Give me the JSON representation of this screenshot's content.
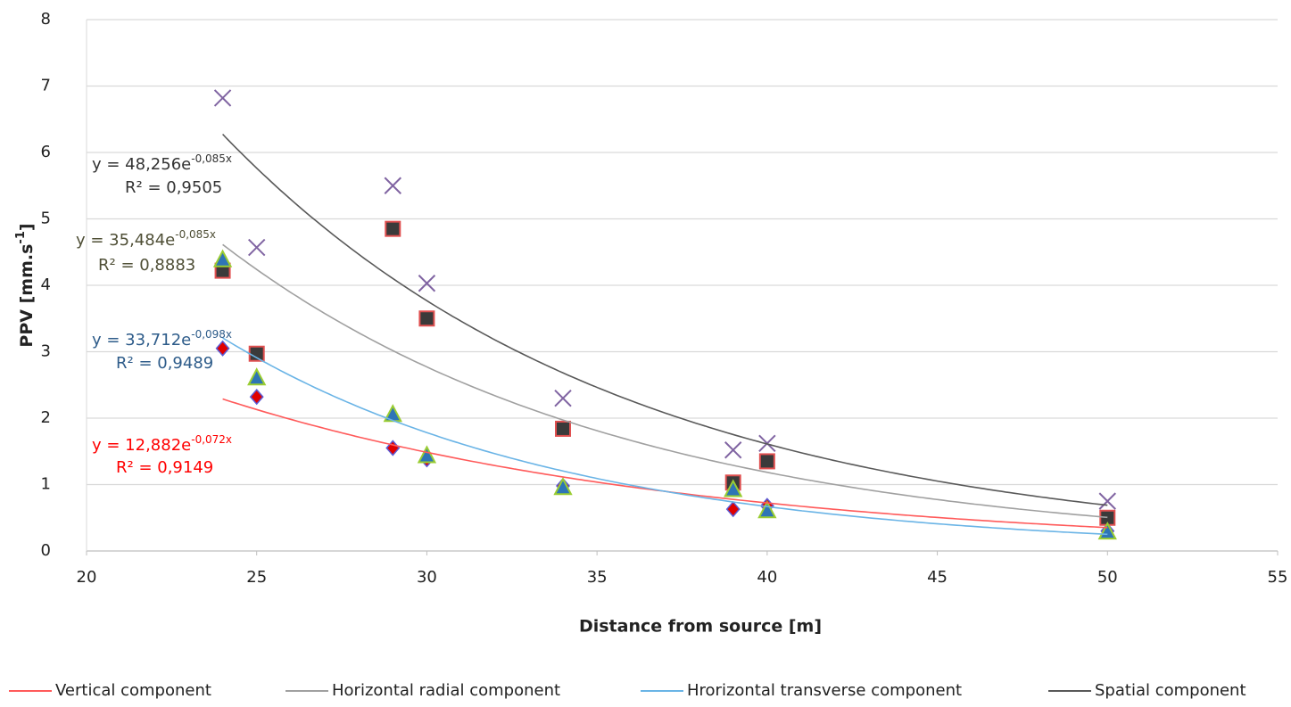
{
  "chart_data": {
    "type": "scatter",
    "xlabel": "Distance from source [m]",
    "ylabel": "PPV  [mm.s",
    "ylabel_sup": "-1",
    "ylabel_end": "]",
    "x": [
      24,
      25,
      29,
      30,
      34,
      39,
      40,
      50
    ],
    "xlim": [
      20,
      55
    ],
    "xticks": [
      20,
      25,
      30,
      35,
      40,
      45,
      50,
      55
    ],
    "ylim": [
      0,
      8
    ],
    "yticks": [
      0,
      1,
      2,
      3,
      4,
      5,
      6,
      7,
      8
    ],
    "grid": true,
    "legend": "bottom",
    "series": [
      {
        "name": "Vertical component",
        "color": "#ff5a5a",
        "marker": "diamond",
        "marker_fill": "#e00000",
        "marker_stroke": "#5b5bd5",
        "values": [
          3.05,
          2.32,
          1.55,
          1.38,
          0.98,
          0.63,
          0.68,
          0.3
        ],
        "trendline": {
          "a": 12.882,
          "b": -0.072,
          "equation": "y = 12,882e",
          "exponent": "-0,072x",
          "r2": "R² = 0,9149",
          "label_color": "#ff0000"
        }
      },
      {
        "name": "Horizontal radial component",
        "color": "#a0a0a0",
        "marker": "square",
        "marker_fill": "#3a3a3a",
        "marker_stroke": "#e05050",
        "values": [
          4.22,
          2.97,
          4.85,
          3.5,
          1.84,
          1.03,
          1.35,
          0.5
        ],
        "trendline": {
          "a": 35.484,
          "b": -0.085,
          "equation": "y = 35,484e",
          "exponent": "-0,085x",
          "r2": "R² = 0,8883",
          "label_color": "#4f4f36"
        }
      },
      {
        "name": "Hrorizontal transverse component",
        "color": "#6ab4e6",
        "marker": "triangle",
        "marker_fill": "#2e75b6",
        "marker_stroke": "#9acd32",
        "values": [
          4.38,
          2.6,
          2.05,
          1.43,
          0.95,
          0.92,
          0.6,
          0.28
        ],
        "trendline": {
          "a": 33.712,
          "b": -0.098,
          "equation": "y = 33,712e",
          "exponent": "-0,098x",
          "r2": "R² = 0,9489",
          "label_color": "#2e5c8a"
        }
      },
      {
        "name": "Spatial component",
        "color": "#595959",
        "marker": "x",
        "marker_fill": "none",
        "marker_stroke": "#8064a2",
        "values": [
          6.82,
          4.57,
          5.5,
          4.03,
          2.3,
          1.52,
          1.62,
          0.75
        ],
        "trendline": {
          "a": 48.256,
          "b": -0.085,
          "equation": "y = 48,256e",
          "exponent": "-0,085x",
          "r2": "R² = 0,9505",
          "label_color": "#333333"
        }
      }
    ]
  }
}
